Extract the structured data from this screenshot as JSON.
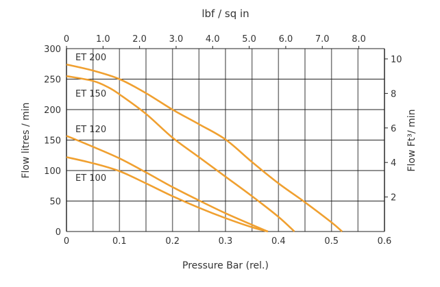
{
  "chart_data": {
    "type": "line",
    "xlabel": "Pressure Bar (rel.)",
    "ylabel": "Flow litres / min",
    "x2label": "lbf / sq in",
    "y2label": "Flow Ft³/ min",
    "xlim": [
      0,
      0.6
    ],
    "ylim": [
      0,
      300
    ],
    "x_ticks": [
      "0",
      "0.1",
      "0.2",
      "0.3",
      "0.4",
      "0.5",
      "0.6"
    ],
    "y_ticks": [
      "0",
      "50",
      "100",
      "150",
      "200",
      "250",
      "300"
    ],
    "x2_ticks": [
      "0",
      "1.0",
      "2.0",
      "3.0",
      "4.0",
      "5.0",
      "6.0",
      "7.0",
      "8.0"
    ],
    "y2_ticks": [
      "2",
      "4",
      "6",
      "8",
      "10"
    ],
    "grid": true,
    "line_color": "#f0a030",
    "series": [
      {
        "name": "ET 200",
        "x": [
          0,
          0.05,
          0.1,
          0.15,
          0.2,
          0.25,
          0.3,
          0.35,
          0.4,
          0.45,
          0.5,
          0.52
        ],
        "y": [
          274,
          264,
          250,
          227,
          200,
          176,
          151,
          114,
          79,
          48,
          15,
          0
        ]
      },
      {
        "name": "ET 150",
        "x": [
          0,
          0.05,
          0.08,
          0.1,
          0.15,
          0.2,
          0.25,
          0.3,
          0.35,
          0.4,
          0.43
        ],
        "y": [
          255,
          247,
          236,
          225,
          193,
          154,
          122,
          90,
          58,
          24,
          0
        ]
      },
      {
        "name": "ET 120",
        "x": [
          0,
          0.05,
          0.1,
          0.15,
          0.2,
          0.25,
          0.3,
          0.35,
          0.38
        ],
        "y": [
          157,
          139,
          120,
          97,
          73,
          51,
          30,
          11,
          0
        ]
      },
      {
        "name": "ET 100",
        "x": [
          0,
          0.05,
          0.1,
          0.15,
          0.2,
          0.25,
          0.3,
          0.35,
          0.38
        ],
        "y": [
          122,
          112,
          99,
          79,
          58,
          39,
          22,
          7,
          0
        ]
      }
    ]
  }
}
